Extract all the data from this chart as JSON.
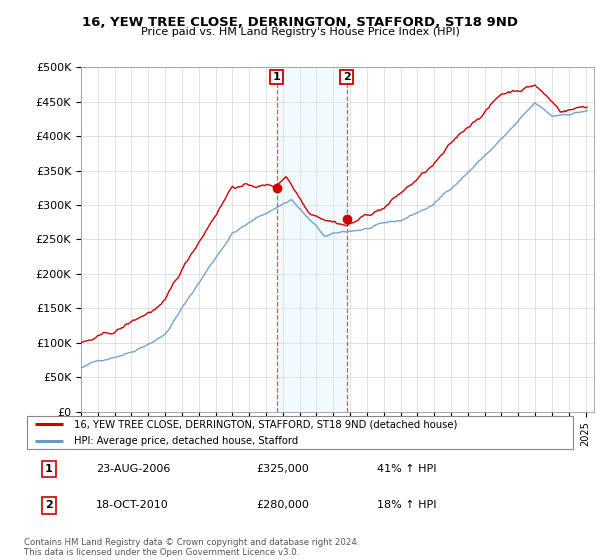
{
  "title": "16, YEW TREE CLOSE, DERRINGTON, STAFFORD, ST18 9ND",
  "subtitle": "Price paid vs. HM Land Registry's House Price Index (HPI)",
  "ylim": [
    0,
    500000
  ],
  "yticks": [
    0,
    50000,
    100000,
    150000,
    200000,
    250000,
    300000,
    350000,
    400000,
    450000,
    500000
  ],
  "ytick_labels": [
    "£0",
    "£50K",
    "£100K",
    "£150K",
    "£200K",
    "£250K",
    "£300K",
    "£350K",
    "£400K",
    "£450K",
    "£500K"
  ],
  "sale1_date_num": 2006.64,
  "sale1_price": 325000,
  "sale1_text": "23-AUG-2006",
  "sale1_pct": "41% ↑ HPI",
  "sale2_date_num": 2010.79,
  "sale2_price": 280000,
  "sale2_text": "18-OCT-2010",
  "sale2_pct": "18% ↑ HPI",
  "red_line_color": "#cc0000",
  "blue_line_color": "#6699cc",
  "shade_color": "#dceeff",
  "vline_color": "#dd4444",
  "legend_line1": "16, YEW TREE CLOSE, DERRINGTON, STAFFORD, ST18 9ND (detached house)",
  "legend_line2": "HPI: Average price, detached house, Stafford",
  "footnote": "Contains HM Land Registry data © Crown copyright and database right 2024.\nThis data is licensed under the Open Government Licence v3.0.",
  "xmin": 1995.0,
  "xmax": 2025.5,
  "xtick_years": [
    1995,
    1996,
    1997,
    1998,
    1999,
    2000,
    2001,
    2002,
    2003,
    2004,
    2005,
    2006,
    2007,
    2008,
    2009,
    2010,
    2011,
    2012,
    2013,
    2014,
    2015,
    2016,
    2017,
    2018,
    2019,
    2020,
    2021,
    2022,
    2023,
    2024,
    2025
  ]
}
